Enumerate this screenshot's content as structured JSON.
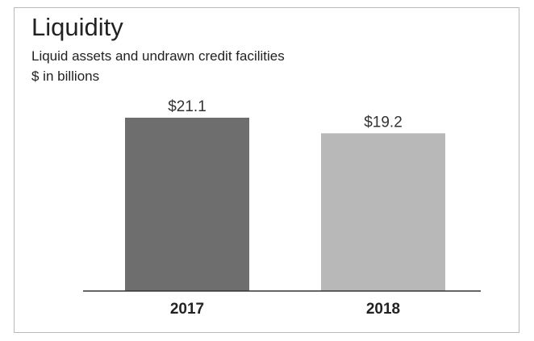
{
  "chart_data": {
    "type": "bar",
    "title": "Liquidity",
    "subtitle": "Liquid assets and undrawn credit facilities",
    "unit_label": "$ in billions",
    "categories": [
      "2017",
      "2018"
    ],
    "values": [
      21.1,
      19.2
    ],
    "value_labels": [
      "$21.1",
      "$19.2"
    ],
    "ylim": [
      0,
      21.1
    ],
    "bar_colors": [
      "#6e6e6e",
      "#b8b8b8"
    ],
    "axis_color": "#333333",
    "grid": false,
    "legend": "none"
  }
}
